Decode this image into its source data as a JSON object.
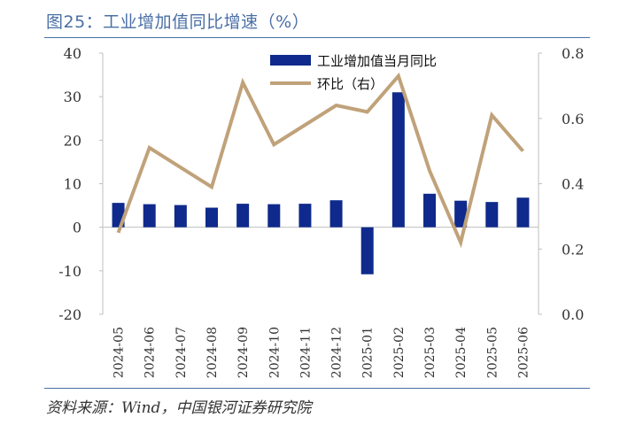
{
  "header": {
    "title": "图25：工业增加值同比增速（%）"
  },
  "footer": {
    "source": "资料来源：Wind，中国银河证券研究院"
  },
  "colors": {
    "bar": "#0f2a8c",
    "line": "#c0a27a",
    "axis": "#bfbfbf",
    "title": "#4a6fa5"
  },
  "chart_data": {
    "type": "bar+line",
    "title": "工业增加值同比增速（%）",
    "categories": [
      "2024-05",
      "2024-06",
      "2024-07",
      "2024-08",
      "2024-09",
      "2024-10",
      "2024-11",
      "2024-12",
      "2025-01",
      "2025-02",
      "2025-03",
      "2025-04",
      "2025-05",
      "2025-06"
    ],
    "series": [
      {
        "name": "工业增加值当月同比",
        "type": "bar",
        "axis": "left",
        "values": [
          5.6,
          5.3,
          5.1,
          4.5,
          5.4,
          5.3,
          5.4,
          6.2,
          -10.8,
          31.0,
          7.7,
          6.1,
          5.8,
          6.8
        ]
      },
      {
        "name": "环比（右）",
        "type": "line",
        "axis": "right",
        "values": [
          0.25,
          0.51,
          0.45,
          0.39,
          0.71,
          0.52,
          0.58,
          0.64,
          0.62,
          0.73,
          0.44,
          0.22,
          0.61,
          0.5
        ]
      }
    ],
    "y_left": {
      "min": -20,
      "max": 40,
      "ticks": [
        "40",
        "30",
        "20",
        "10",
        "0",
        "-10",
        "-20"
      ]
    },
    "y_right": {
      "min": 0.0,
      "max": 0.8,
      "ticks": [
        "0.8",
        "0.6",
        "0.4",
        "0.2",
        "0.0"
      ]
    },
    "legend": [
      "工业增加值当月同比",
      "环比（右）"
    ],
    "legend_position": "top-center"
  }
}
